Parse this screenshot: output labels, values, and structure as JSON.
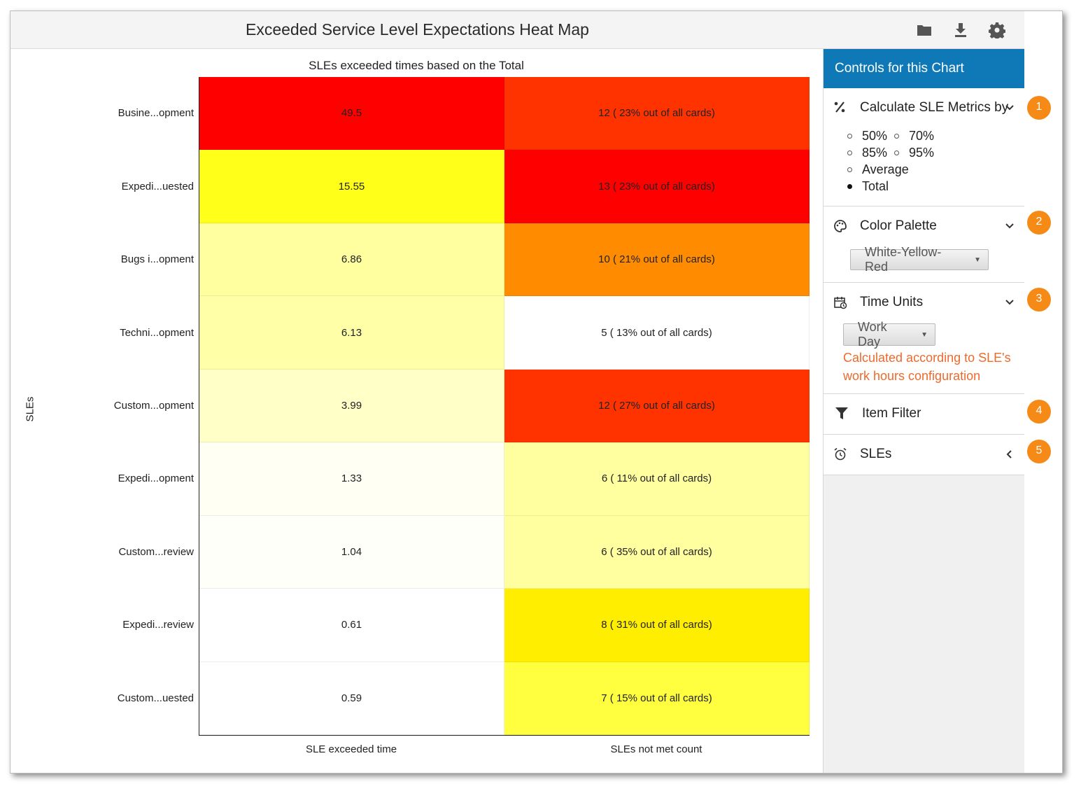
{
  "header": {
    "title": "Exceeded Service Level Expectations Heat Map",
    "icons": [
      "folder-icon",
      "download-icon",
      "gear-icon"
    ]
  },
  "chart_data": {
    "type": "heatmap",
    "title": "SLEs exceeded times based on the Total",
    "ylabel": "SLEs",
    "xlabel": "",
    "columns": [
      "SLE exceeded time",
      "SLEs not met count"
    ],
    "rows": [
      "Busine...opment",
      "Expedi...uested",
      "Bugs i...opment",
      "Techni...opment",
      "Custom...opment",
      "Expedi...opment",
      "Custom...review",
      "Expedi...review",
      "Custom...uested"
    ],
    "values": [
      [
        49.5,
        12
      ],
      [
        15.55,
        13
      ],
      [
        6.86,
        10
      ],
      [
        6.13,
        5
      ],
      [
        3.99,
        12
      ],
      [
        1.33,
        6
      ],
      [
        1.04,
        6
      ],
      [
        0.61,
        8
      ],
      [
        0.59,
        7
      ]
    ],
    "cell_labels": [
      [
        "49.5",
        "12 ( 23% out of all cards)"
      ],
      [
        "15.55",
        "13 ( 23% out of all cards)"
      ],
      [
        "6.86",
        "10 ( 21% out of all cards)"
      ],
      [
        "6.13",
        "5 ( 13% out of all cards)"
      ],
      [
        "3.99",
        "12 ( 27% out of all cards)"
      ],
      [
        "1.33",
        "6 ( 11% out of all cards)"
      ],
      [
        "1.04",
        "6 ( 35% out of all cards)"
      ],
      [
        "0.61",
        "8 ( 31% out of all cards)"
      ],
      [
        "0.59",
        "7 ( 15% out of all cards)"
      ]
    ],
    "cell_colors": [
      [
        "#ff0000",
        "#ff3300"
      ],
      [
        "#ffff1a",
        "#ff0000"
      ],
      [
        "#ffffa0",
        "#ff8c00"
      ],
      [
        "#ffffa8",
        "#ffffff"
      ],
      [
        "#ffffc8",
        "#ff3300"
      ],
      [
        "#fffff4",
        "#ffffa0"
      ],
      [
        "#fffffa",
        "#ffffa0"
      ],
      [
        "#ffffff",
        "#ffee00"
      ],
      [
        "#ffffff",
        "#ffff40"
      ]
    ],
    "palette": "White-Yellow-Red"
  },
  "panel": {
    "header": "Controls for this Chart",
    "sections": {
      "calc": {
        "title": "Calculate SLE Metrics by",
        "icon": "percent-icon",
        "options": [
          "50%",
          "70%",
          "85%",
          "95%",
          "Average",
          "Total"
        ],
        "selected": "Total"
      },
      "palette": {
        "title": "Color Palette",
        "icon": "palette-icon",
        "selected": "White-Yellow-Red"
      },
      "time_units": {
        "title": "Time Units",
        "icon": "calendar-clock-icon",
        "selected": "Work Day",
        "note": "Calculated according to SLE's work hours configuration"
      },
      "item_filter": {
        "title": "Item Filter",
        "icon": "filter-icon"
      },
      "sles": {
        "title": "SLEs",
        "icon": "alarm-clock-icon"
      }
    },
    "badges": [
      "1",
      "2",
      "3",
      "4",
      "5"
    ],
    "colors": {
      "header_bg": "#0f79b7",
      "badge": "#f68a16",
      "note": "#ee6a2c"
    }
  }
}
